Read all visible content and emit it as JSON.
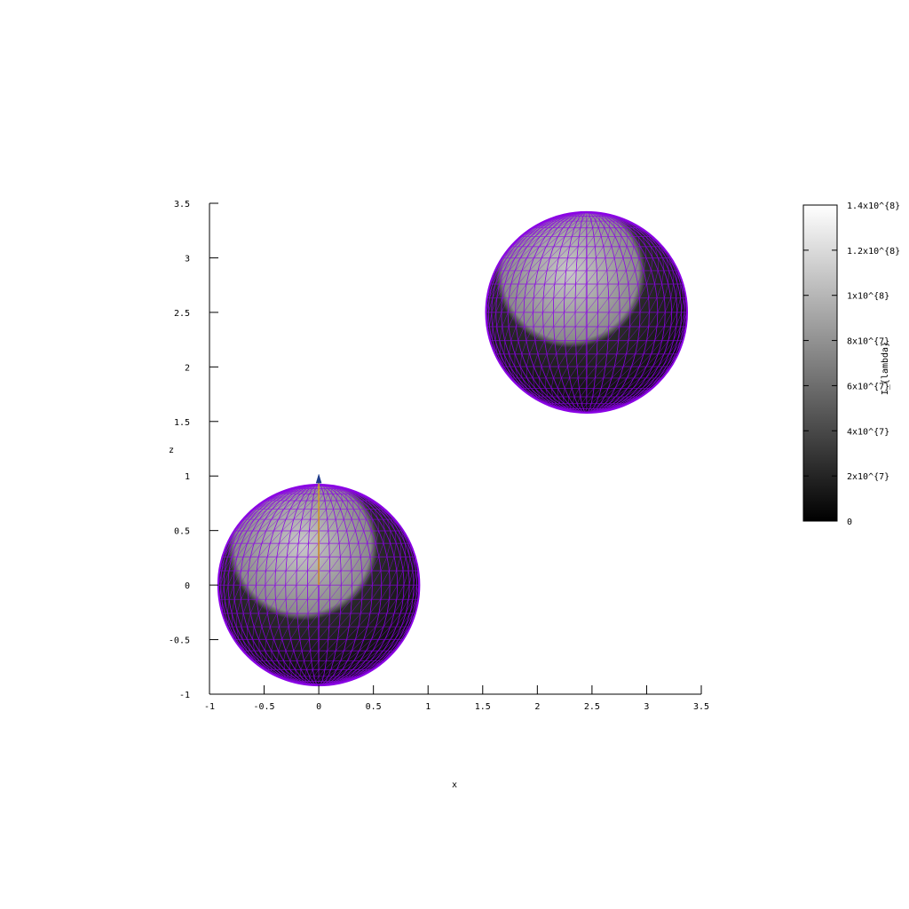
{
  "chart_data": {
    "type": "scatter",
    "description_type": "3d-surface-projection",
    "title": "",
    "xlabel": "x",
    "ylabel": "z",
    "xlim": [
      -1,
      3.5
    ],
    "ylim": [
      -1,
      3.5
    ],
    "xticks": [
      "-1",
      "-0.5",
      "0",
      "0.5",
      "1",
      "1.5",
      "2",
      "2.5",
      "3",
      "3.5"
    ],
    "yticks": [
      "-1",
      "-0.5",
      "0",
      "0.5",
      "1",
      "1.5",
      "2",
      "2.5",
      "3",
      "3.5"
    ],
    "grid": false,
    "spheres": [
      {
        "center": [
          0,
          0
        ],
        "radius": 0.92
      },
      {
        "center": [
          2.45,
          2.5
        ],
        "radius": 0.92
      }
    ],
    "needle": {
      "x": 0,
      "z_start": 0,
      "z_end": 1.0
    },
    "mesh_color": "#8b00e6",
    "needle_color": "#d4a017",
    "colorbar": {
      "label": "I_{lambda}",
      "range": [
        0,
        140000000
      ],
      "ticks": [
        {
          "value": 0,
          "label": "0"
        },
        {
          "value": 20000000,
          "label": "2x10^{7}"
        },
        {
          "value": 40000000,
          "label": "4x10^{7}"
        },
        {
          "value": 60000000,
          "label": "6x10^{7}"
        },
        {
          "value": 80000000,
          "label": "8x10^{7}"
        },
        {
          "value": 100000000,
          "label": "1x10^{8}"
        },
        {
          "value": 120000000,
          "label": "1.2x10^{8}"
        },
        {
          "value": 140000000,
          "label": "1.4x10^{8}"
        }
      ],
      "colors": [
        "#000000",
        "#ffffff"
      ]
    }
  }
}
